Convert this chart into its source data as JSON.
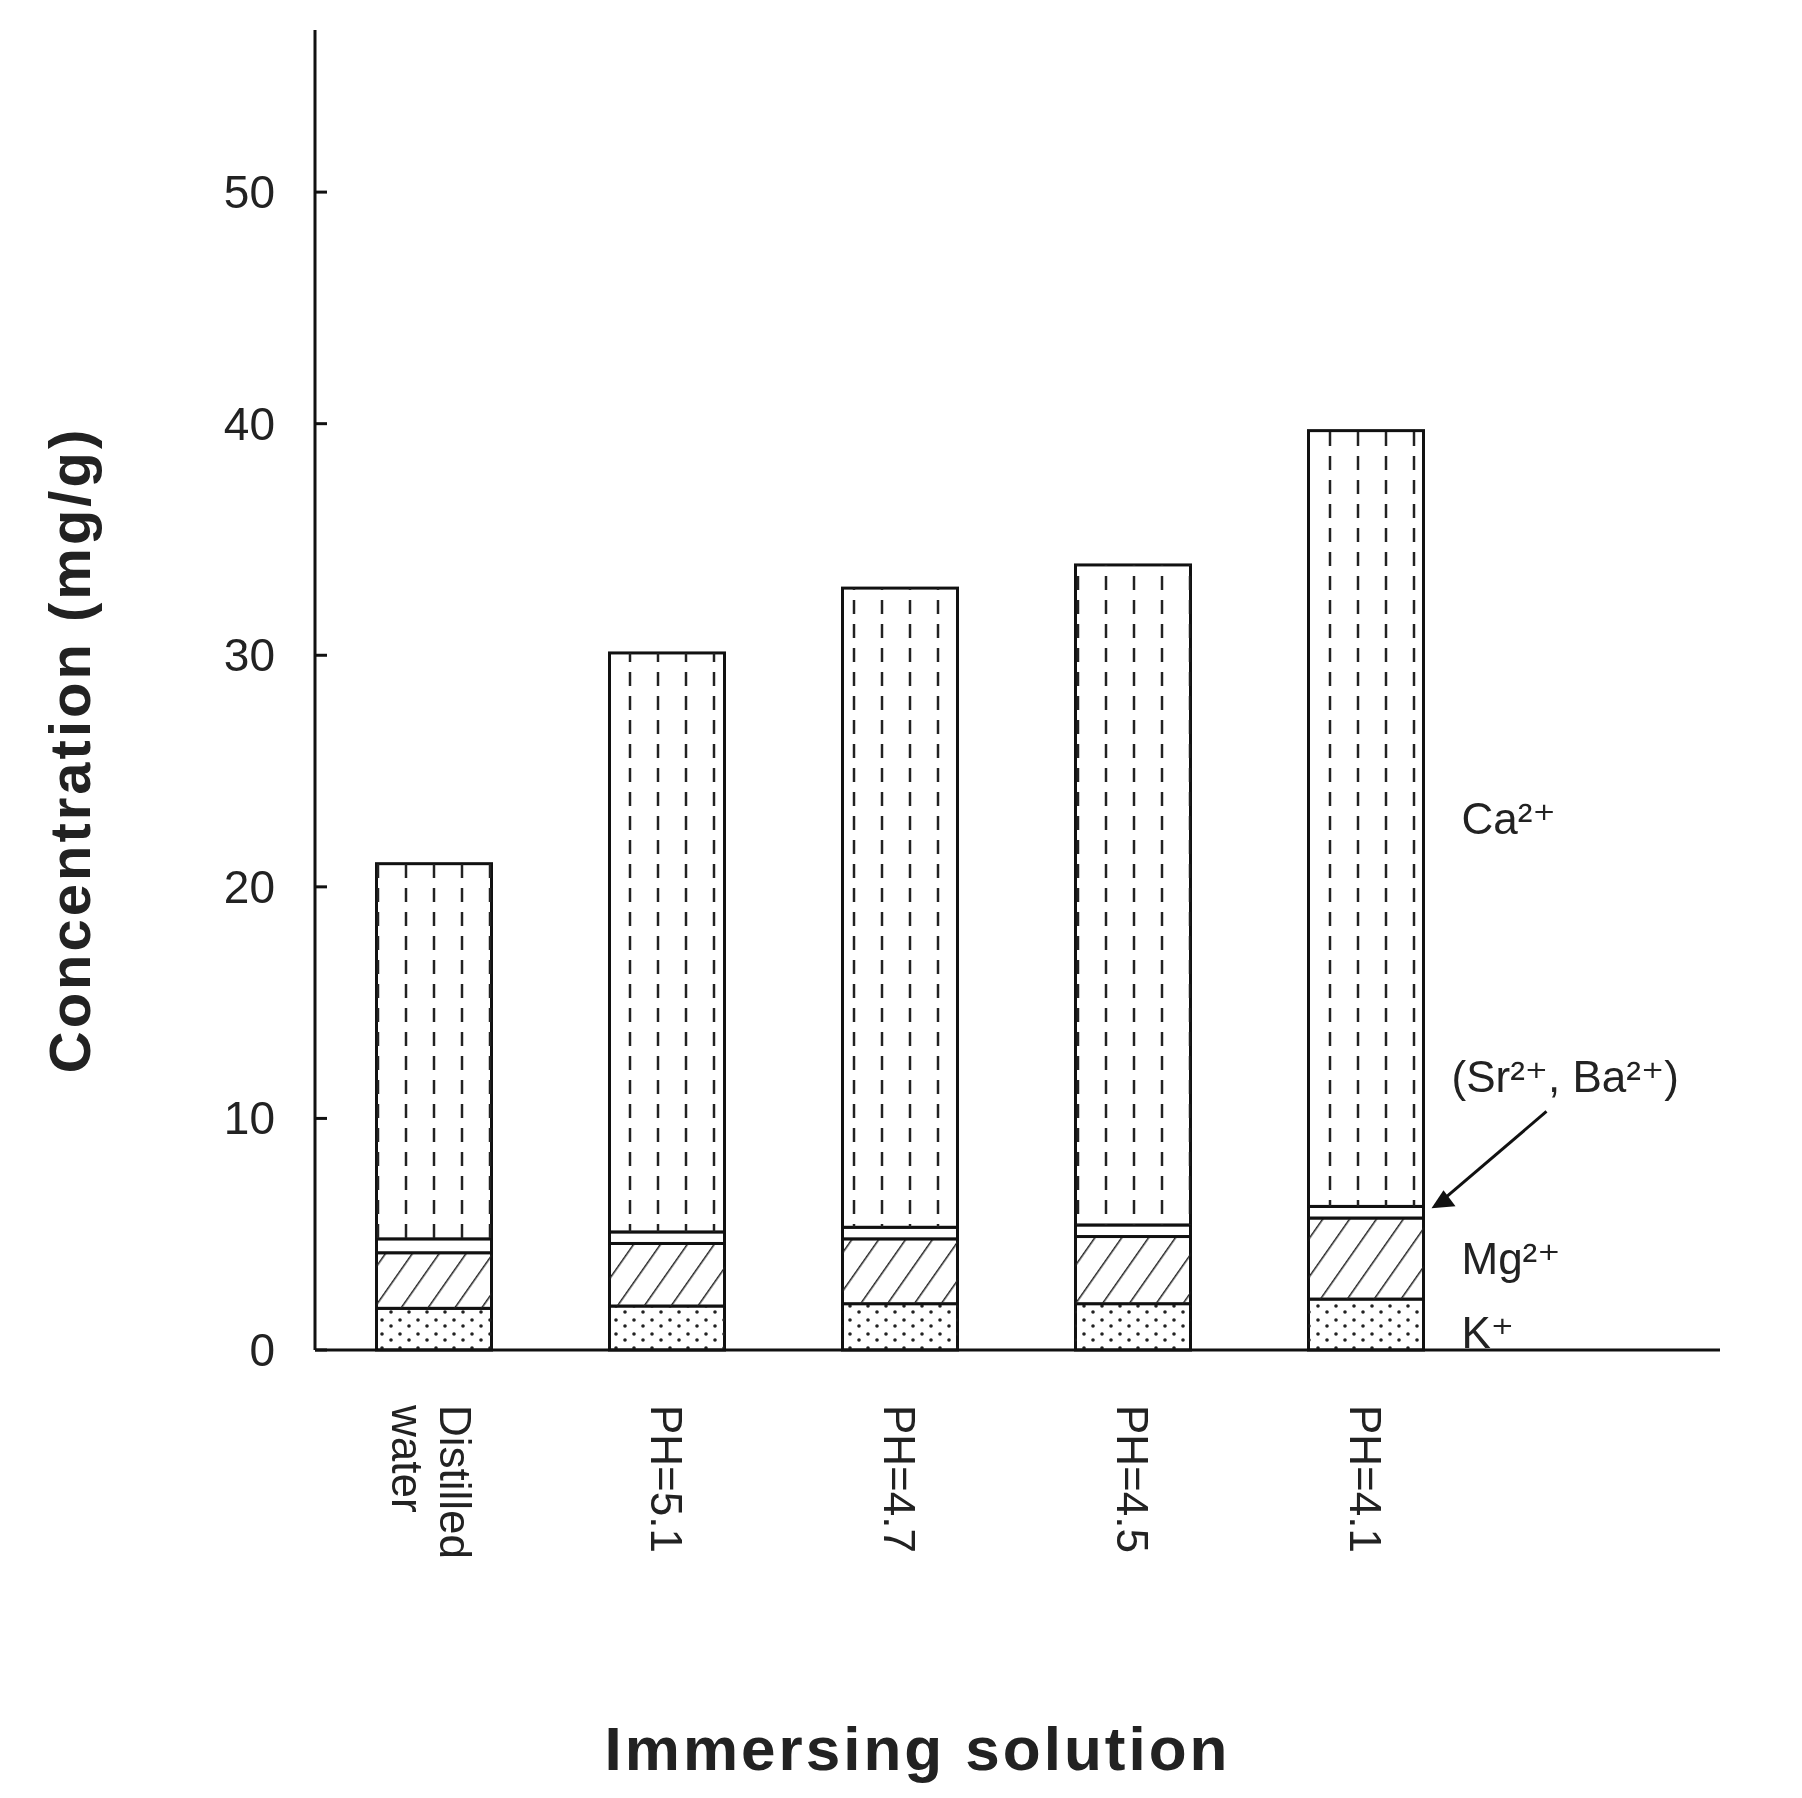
{
  "chart_data": {
    "type": "bar",
    "stacked": true,
    "xlabel": "Immersing solution",
    "ylabel": "Concentration (mg/g)",
    "categories": [
      "Distilled water",
      "PH=5.1",
      "PH=4.7",
      "PH=4.5",
      "PH=4.1"
    ],
    "series": [
      {
        "name": "K⁺",
        "color": "#ffffff",
        "values": [
          1.8,
          1.9,
          2.0,
          2.0,
          2.2
        ]
      },
      {
        "name": "Mg²⁺",
        "color": "#ffffff",
        "values": [
          2.4,
          2.7,
          2.8,
          2.9,
          3.5
        ]
      },
      {
        "name": "(Sr²⁺, Ba²⁺)",
        "color": "#ffffff",
        "values": [
          0.6,
          0.5,
          0.5,
          0.5,
          0.5
        ]
      },
      {
        "name": "Ca²⁺",
        "color": "#ffffff",
        "values": [
          16.2,
          25.0,
          27.6,
          28.5,
          33.5
        ]
      }
    ],
    "ylim": [
      0,
      57
    ],
    "yticks": [
      0,
      10,
      20,
      30,
      40,
      50
    ]
  }
}
